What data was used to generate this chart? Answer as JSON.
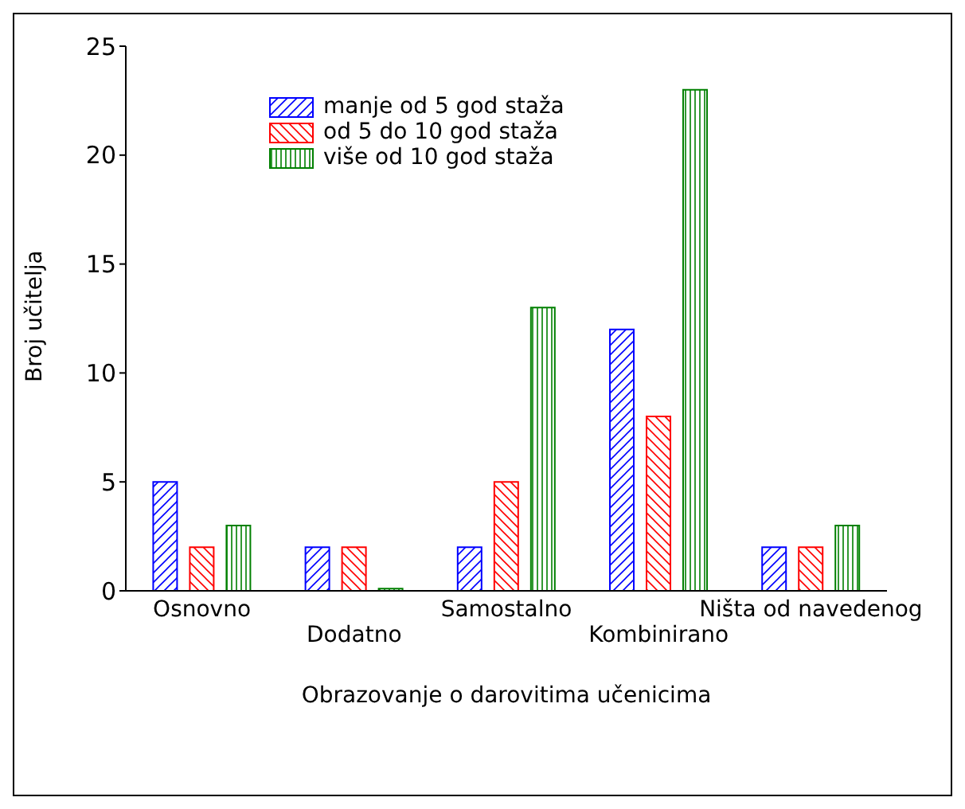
{
  "chart_data": {
    "type": "bar",
    "xlabel": "Obrazovanje o darovitima učenicima",
    "ylabel": "Broj učitelja",
    "categories": [
      "Osnovno",
      "Dodatno",
      "Samostalno",
      "Kombinirano",
      "Ništa od navedenog"
    ],
    "series": [
      {
        "name": "manje od 5 god staža",
        "color": "#0000ff",
        "values": [
          5,
          2,
          2,
          12,
          2
        ]
      },
      {
        "name": "od 5 do 10 god staža",
        "color": "#ff0000",
        "values": [
          2,
          2,
          5,
          8,
          2
        ]
      },
      {
        "name": "više od 10 god staža",
        "color": "#008000",
        "values": [
          3,
          0.1,
          13,
          23,
          3
        ]
      }
    ],
    "ylim": [
      0,
      25
    ],
    "yticks": [
      0,
      5,
      10,
      15,
      20,
      25
    ],
    "legend": "top left"
  }
}
